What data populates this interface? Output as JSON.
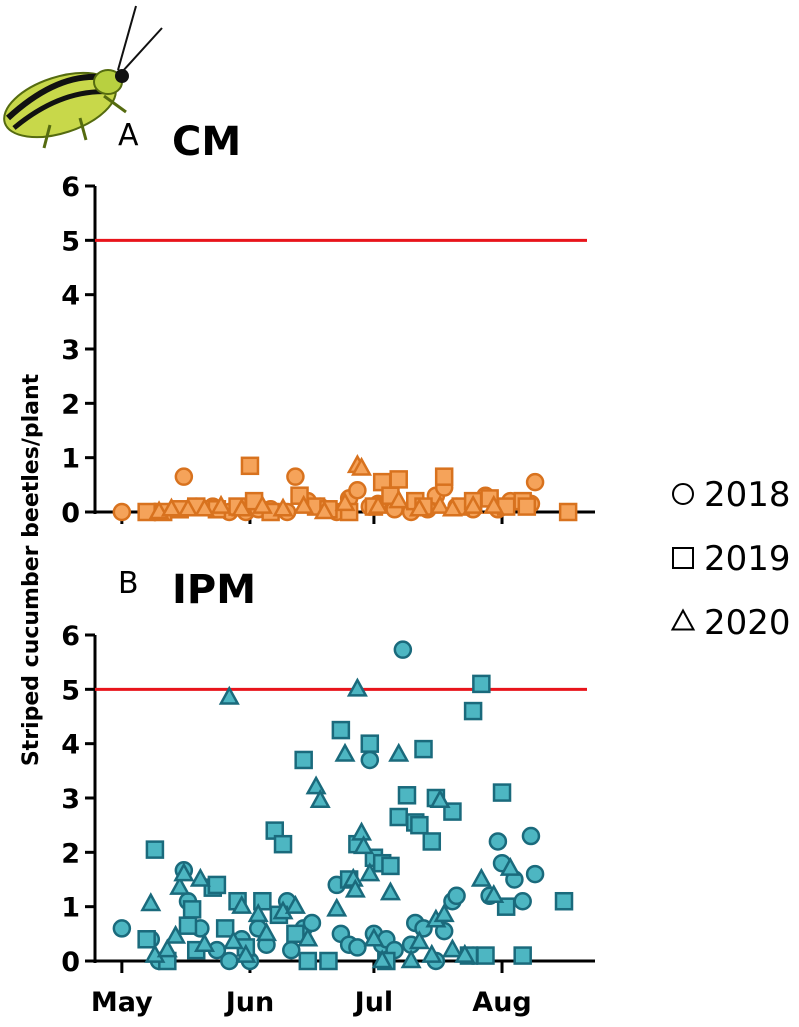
{
  "chart_data": [
    {
      "type": "scatter",
      "panel": "A",
      "title": "CM",
      "ylabel": "Striped cucumber beetles/plant",
      "xlim": [
        -6.5,
        114.5
      ],
      "xticks": [
        0,
        31,
        61,
        92
      ],
      "ylim": [
        0,
        6
      ],
      "yticks": [
        0,
        1,
        2,
        3,
        4,
        5,
        6
      ],
      "threshold": 5,
      "threshold_color": "#e8141b",
      "series": [
        {
          "name": "2018",
          "marker": "circle",
          "color": "#f5a35a",
          "edgecolor": "#d8721e",
          "x": [
            0,
            8,
            15,
            18,
            22,
            26,
            30,
            33,
            36,
            40,
            42,
            45,
            48,
            52,
            55,
            57,
            60,
            62,
            66,
            70,
            74,
            76,
            78,
            81,
            85,
            88,
            91,
            94,
            99,
            100
          ],
          "values": [
            0,
            0,
            0.65,
            0.1,
            0.1,
            0,
            0,
            0.05,
            0.05,
            0,
            0.65,
            0.2,
            0.1,
            0,
            0.25,
            0.4,
            0.1,
            0.15,
            0.05,
            0,
            0.05,
            0.3,
            0.45,
            0.1,
            0.05,
            0.3,
            0.05,
            0.2,
            0.15,
            0.55
          ]
        },
        {
          "name": "2019",
          "marker": "square",
          "color": "#f5a35a",
          "edgecolor": "#d8721e",
          "x": [
            6,
            10,
            14,
            18,
            23,
            28,
            31,
            32,
            36,
            43,
            47,
            50,
            55,
            61,
            63,
            65,
            67,
            71,
            73,
            78,
            82,
            85,
            89,
            93,
            97,
            98,
            108
          ],
          "values": [
            0,
            0,
            0.05,
            0.1,
            0.05,
            0.1,
            0.85,
            0.2,
            0,
            0.3,
            0.1,
            0.05,
            0,
            0.1,
            0.55,
            0.3,
            0.6,
            0.2,
            0.1,
            0.65,
            0.1,
            0.2,
            0.25,
            0.1,
            0.2,
            0.1,
            0
          ]
        },
        {
          "name": "2020",
          "marker": "triangle",
          "color": "#f5a35a",
          "edgecolor": "#d8721e",
          "x": [
            9,
            12,
            16,
            20,
            24,
            29,
            34,
            39,
            44,
            49,
            54,
            57,
            58,
            62,
            67,
            72,
            77,
            80,
            85,
            90
          ],
          "values": [
            0,
            0.05,
            0.05,
            0.05,
            0.1,
            0.05,
            0.1,
            0.05,
            0.1,
            0,
            0.15,
            0.85,
            0.8,
            0.1,
            0.2,
            0.05,
            0.1,
            0.05,
            0.1,
            0.1
          ]
        }
      ]
    },
    {
      "type": "scatter",
      "panel": "B",
      "title": "IPM",
      "xlim": [
        -6.5,
        114.5
      ],
      "xticks": [
        {
          "value": 0,
          "label": "May"
        },
        {
          "value": 31,
          "label": "Jun"
        },
        {
          "value": 61,
          "label": "Jul"
        },
        {
          "value": 92,
          "label": "Aug"
        }
      ],
      "ylim": [
        0,
        6
      ],
      "yticks": [
        0,
        1,
        2,
        3,
        4,
        5,
        6
      ],
      "threshold": 5,
      "threshold_color": "#e8141b",
      "series": [
        {
          "marker": "circle",
          "color": "#4db6c2",
          "edgecolor": "#1a6a7c",
          "x": [
            0,
            7,
            9,
            15,
            16,
            19,
            23,
            26,
            29,
            31,
            33,
            35,
            40,
            41,
            44,
            46,
            52,
            53,
            55,
            57,
            60,
            61,
            63,
            64,
            66,
            68,
            70,
            71,
            73,
            76,
            78,
            80,
            81,
            85,
            89,
            91,
            92,
            95,
            97,
            99,
            100
          ],
          "values": [
            0.6,
            0.4,
            0,
            1.67,
            1.1,
            0.6,
            0.2,
            0,
            0.4,
            0,
            0.6,
            0.3,
            1.1,
            0.2,
            0.6,
            0.7,
            1.4,
            0.5,
            0.3,
            0.25,
            3.7,
            0.5,
            0.3,
            0.4,
            0.2,
            5.73,
            0.3,
            0.7,
            0.6,
            0,
            0.55,
            1.1,
            1.2,
            0.1,
            1.2,
            2.2,
            1.8,
            1.5,
            1.1,
            2.3,
            1.6
          ]
        },
        {
          "marker": "square",
          "color": "#4db6c2",
          "edgecolor": "#1a6a7c",
          "x": [
            6,
            8,
            11,
            16,
            17,
            18,
            22,
            23,
            25,
            28,
            30,
            34,
            37,
            38,
            39,
            42,
            44,
            45,
            50,
            53,
            55,
            57,
            60,
            61,
            63,
            64,
            65,
            67,
            69,
            71,
            72,
            73,
            75,
            76,
            80,
            84,
            85,
            87,
            88,
            92,
            93,
            97,
            107
          ],
          "values": [
            0.4,
            2.05,
            0,
            0.65,
            0.95,
            0.2,
            1.35,
            1.4,
            0.6,
            1.1,
            0.25,
            1.1,
            2.4,
            0.85,
            2.15,
            0.5,
            3.7,
            0,
            0,
            4.25,
            1.5,
            2.15,
            4.0,
            1.9,
            1.8,
            0,
            1.75,
            2.65,
            3.05,
            2.55,
            2.5,
            3.9,
            2.2,
            3.0,
            2.75,
            0.1,
            4.6,
            5.1,
            0.1,
            3.1,
            1.0,
            0.1,
            1.1
          ]
        },
        {
          "marker": "triangle",
          "color": "#4db6c2",
          "edgecolor": "#1a6a7c",
          "x": [
            7,
            8,
            11,
            13,
            14,
            15,
            19,
            20,
            26,
            27,
            29,
            30,
            33,
            35,
            39,
            42,
            45,
            47,
            48,
            52,
            54,
            56,
            56.5,
            57,
            58,
            58.5,
            60,
            61,
            63,
            65,
            67,
            70,
            72,
            75,
            76,
            77,
            78,
            80,
            83,
            87,
            90,
            94
          ],
          "values": [
            1.05,
            0.1,
            0.2,
            0.45,
            1.35,
            1.6,
            1.5,
            0.3,
            4.85,
            0.35,
            1.0,
            0.1,
            0.85,
            0.5,
            0.9,
            1.0,
            0.4,
            3.2,
            2.95,
            0.95,
            3.8,
            1.5,
            1.3,
            5.0,
            2.35,
            2.1,
            1.6,
            0.4,
            0,
            1.25,
            3.8,
            0,
            0.35,
            0.1,
            0.75,
            2.95,
            0.85,
            0.2,
            0.1,
            1.5,
            1.2,
            1.7
          ]
        }
      ]
    }
  ]
}
